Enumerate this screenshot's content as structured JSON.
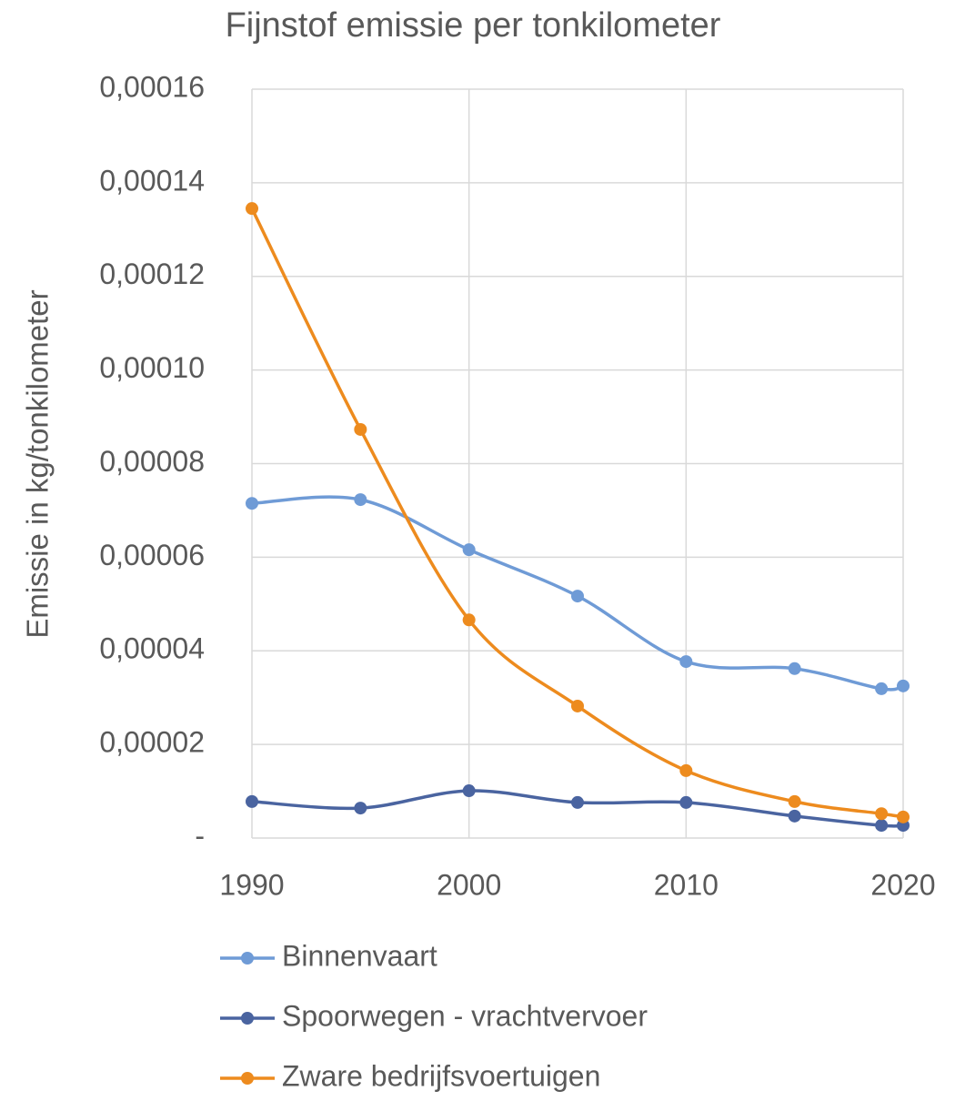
{
  "chart_data": {
    "type": "line",
    "title": "Fijnstof emissie per tonkilometer",
    "y_label": "Emissie in kg/tonkilometer",
    "x": [
      1990,
      1995,
      2000,
      2005,
      2010,
      2015,
      2019,
      2020
    ],
    "series": [
      {
        "name": "Binnenvaart",
        "color": "#6f9bd6",
        "values": [
          7.15e-05,
          7.23e-05,
          6.16e-05,
          5.17e-05,
          3.77e-05,
          3.62e-05,
          3.19e-05,
          3.25e-05
        ]
      },
      {
        "name": "Spoorwegen - vrachtvervoer",
        "color": "#4a64a0",
        "values": [
          7.8e-06,
          6.4e-06,
          1.01e-05,
          7.6e-06,
          7.6e-06,
          4.7e-06,
          2.7e-06,
          2.7e-06
        ]
      },
      {
        "name": "Zware bedrijfsvoertuigen",
        "color": "#ed8b1e",
        "values": [
          0.0001345,
          8.73e-05,
          4.66e-05,
          2.82e-05,
          1.44e-05,
          7.8e-06,
          5.2e-06,
          4.5e-06
        ]
      }
    ],
    "xlim": [
      1990,
      2020
    ],
    "xticks": [
      1990,
      2000,
      2010,
      2020
    ],
    "ylim": [
      0,
      0.00016
    ],
    "yticks": [
      {
        "value": 0,
        "label": "-"
      },
      {
        "value": 2e-05,
        "label": "0,00002"
      },
      {
        "value": 4e-05,
        "label": "0,00004"
      },
      {
        "value": 6e-05,
        "label": "0,00006"
      },
      {
        "value": 8e-05,
        "label": "0,00008"
      },
      {
        "value": 0.0001,
        "label": "0,00010"
      },
      {
        "value": 0.00012,
        "label": "0,00012"
      },
      {
        "value": 0.00014,
        "label": "0,00014"
      },
      {
        "value": 0.00016,
        "label": "0,00016"
      }
    ],
    "grid": true,
    "smooth": true,
    "legend": "bottom"
  }
}
